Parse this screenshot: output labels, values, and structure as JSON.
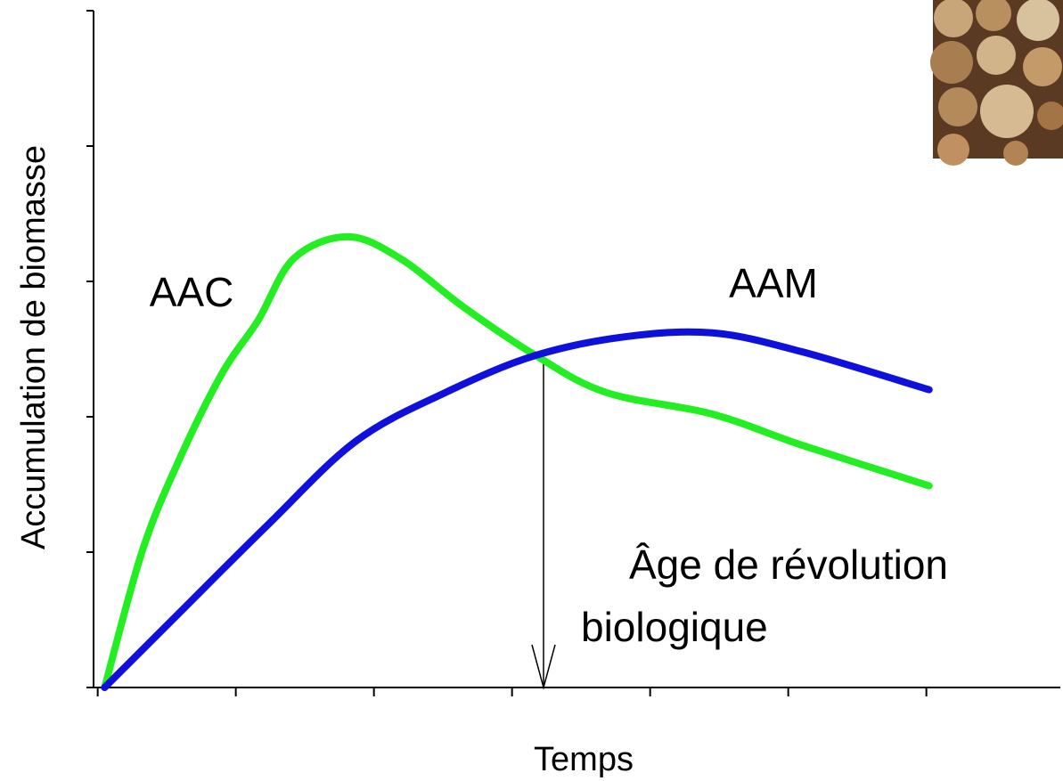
{
  "chart_data": {
    "type": "line",
    "xlabel": "Temps",
    "ylabel": "Accumulation de biomasse",
    "xlim": [
      -0.03,
      6.97
    ],
    "ylim": [
      0,
      5
    ],
    "xticks": [
      0,
      1,
      2,
      3,
      4,
      5,
      6
    ],
    "yticks": [
      0,
      1,
      2,
      3,
      4,
      5
    ],
    "series": [
      {
        "name": "AAC",
        "color": "#22ee22",
        "x": [
          0.05,
          0.32,
          0.58,
          0.9,
          1.16,
          1.42,
          1.81,
          2.19,
          2.65,
          3.16,
          3.68,
          4.45,
          5.1,
          6.02
        ],
        "values": [
          0,
          1.0,
          1.66,
          2.32,
          2.71,
          3.17,
          3.33,
          3.17,
          2.81,
          2.46,
          2.18,
          2.02,
          1.79,
          1.49
        ]
      },
      {
        "name": "AAM",
        "color": "#1010dd",
        "x": [
          0.05,
          0.58,
          1.23,
          1.87,
          2.52,
          3.16,
          3.81,
          4.45,
          5.1,
          6.02
        ],
        "values": [
          0,
          0.54,
          1.2,
          1.82,
          2.18,
          2.45,
          2.59,
          2.62,
          2.48,
          2.2
        ]
      }
    ],
    "annotation": [
      "Âge de révolution",
      "biologique"
    ]
  }
}
